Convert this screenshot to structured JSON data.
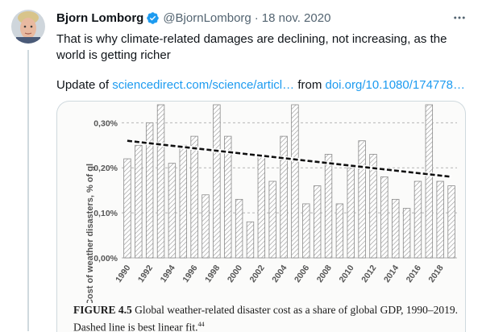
{
  "author": {
    "name": "Bjorn Lomborg",
    "handle": "@BjornLomborg",
    "date": "18 nov. 2020",
    "verified_color": "#1d9bf0"
  },
  "tweet": {
    "text": "That is why climate-related damages are declining, not increasing, as the world is getting richer",
    "update_prefix": "Update of",
    "link1": "sciencedirect.com/science/articl…",
    "link_sep": "from",
    "link2": "doi.org/10.1080/174778…"
  },
  "icons": {
    "verified": "verified-badge-icon",
    "more": "more-options-icon"
  },
  "chart_data": {
    "type": "bar",
    "ylabel": "Cost of weather disasters, % of gl",
    "yticks": [
      "0,00%",
      "0,10%",
      "0,20%",
      "0,30%"
    ],
    "ylim": [
      0,
      0.34
    ],
    "grid": true,
    "categories": [
      "1990",
      "1991",
      "1992",
      "1993",
      "1994",
      "1995",
      "1996",
      "1997",
      "1998",
      "1999",
      "2000",
      "2001",
      "2002",
      "2003",
      "2004",
      "2005",
      "2006",
      "2007",
      "2008",
      "2009",
      "2010",
      "2011",
      "2012",
      "2013",
      "2014",
      "2015",
      "2016",
      "2017",
      "2018",
      "2019"
    ],
    "xtick_labels": [
      "1990",
      "1992",
      "1994",
      "1996",
      "1998",
      "2000",
      "2002",
      "2004",
      "2006",
      "2008",
      "2010",
      "2012",
      "2014",
      "2016",
      "2018"
    ],
    "values": [
      0.22,
      0.25,
      0.3,
      0.34,
      0.21,
      0.25,
      0.27,
      0.14,
      0.34,
      0.27,
      0.13,
      0.08,
      0.23,
      0.17,
      0.27,
      0.34,
      0.12,
      0.16,
      0.23,
      0.12,
      0.2,
      0.26,
      0.23,
      0.18,
      0.13,
      0.11,
      0.17,
      0.34,
      0.17,
      0.16
    ],
    "trend": {
      "start": 0.26,
      "end": 0.18
    }
  },
  "caption": {
    "label": "FIGURE 4.5",
    "text": "Global weather-related disaster cost as a share of global GDP, 1990–2019. Dashed line is best linear fit.",
    "ref": "44"
  }
}
